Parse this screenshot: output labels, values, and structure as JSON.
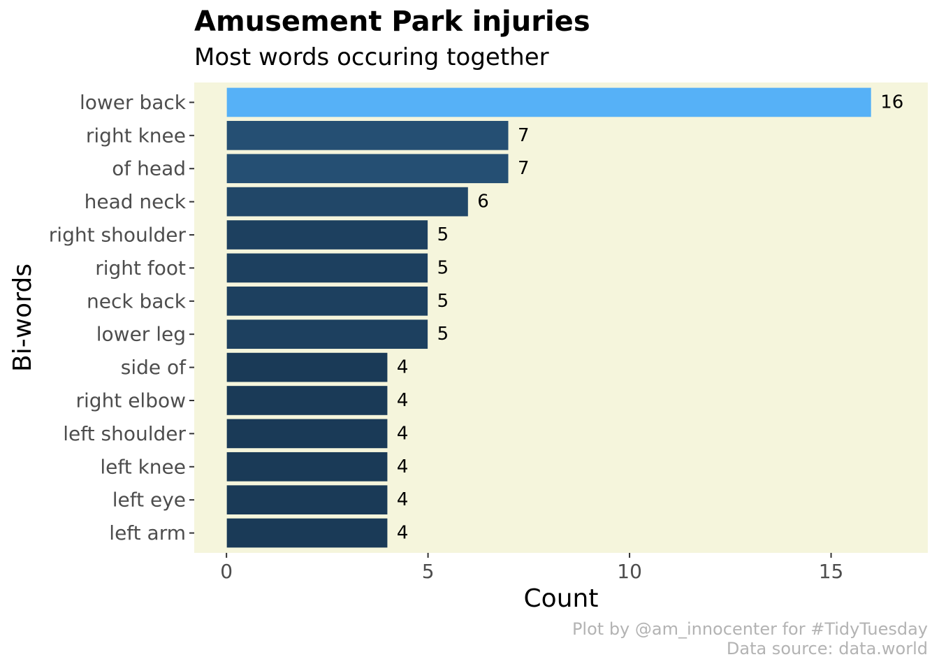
{
  "chart_data": {
    "type": "bar",
    "orientation": "horizontal",
    "title": "Amusement Park injuries",
    "subtitle": "Most words occuring together",
    "xlabel": "Count",
    "ylabel": "Bi-words",
    "caption": [
      "Plot by @am_innocenter for #TidyTuesday",
      "Data source: data.world"
    ],
    "categories": [
      "lower back",
      "right knee",
      "of head",
      "head neck",
      "right shoulder",
      "right foot",
      "neck back",
      "lower leg",
      "side of",
      "right elbow",
      "left shoulder",
      "left knee",
      "left eye",
      "left arm"
    ],
    "values": [
      16,
      7,
      7,
      6,
      5,
      5,
      5,
      5,
      4,
      4,
      4,
      4,
      4,
      4
    ],
    "xlim": [
      -0.8,
      17.4
    ],
    "xticks": [
      0,
      5,
      10,
      15
    ],
    "grid": false,
    "legend": "none",
    "colors": {
      "panel_background": "#f5f5dc",
      "highlight": "#56b1f7",
      "gradient_low": "#132b43",
      "bar_outline": "#f5f5dc",
      "axis_text": "#4d4d4d",
      "caption": "#b3b3b3"
    }
  }
}
